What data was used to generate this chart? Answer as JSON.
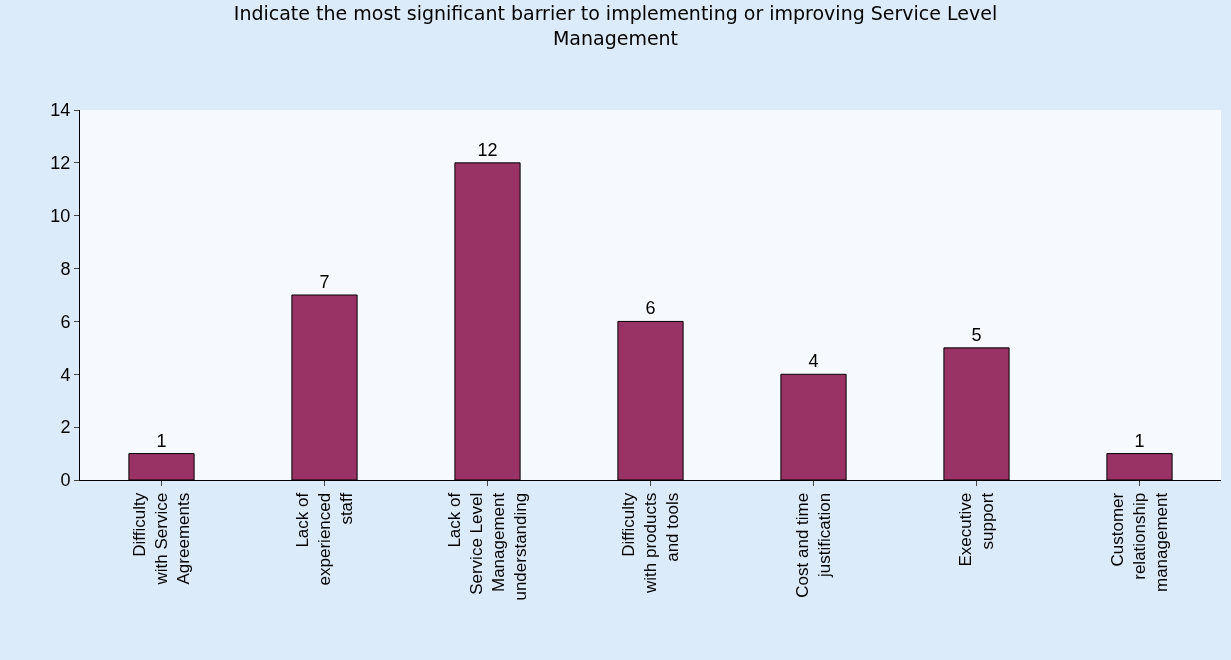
{
  "chart_data": {
    "type": "bar",
    "title": "Indicate the most significant barrier to implementing or improving Service Level Management",
    "categories": [
      "Difficulty with Service Agreements",
      "Lack of experienced staff",
      "Lack of Service Level Management understanding",
      "Difficulty with products and tools",
      "Cost and time justification",
      "Executive support",
      "Customer relationship management"
    ],
    "values": [
      1,
      7,
      12,
      6,
      4,
      5,
      1
    ],
    "color": "#993366",
    "ylim": [
      0,
      14
    ],
    "yticks": [
      0,
      2,
      4,
      6,
      8,
      10,
      12,
      14
    ],
    "grid": false,
    "data_labels": true,
    "legend": false
  }
}
